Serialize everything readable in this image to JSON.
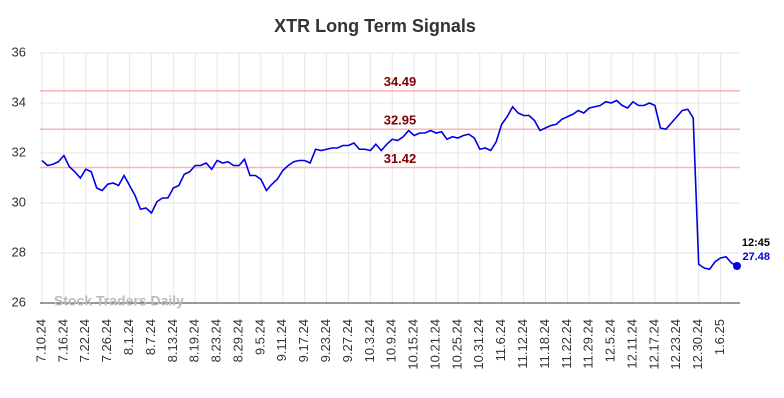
{
  "chart_data": {
    "type": "line",
    "title": "XTR Long Term Signals",
    "watermark": "Stock Traders Daily",
    "categories": [
      "7.10.24",
      null,
      null,
      null,
      "7.16.24",
      null,
      null,
      null,
      "7.22.24",
      null,
      null,
      null,
      "7.26.24",
      null,
      null,
      null,
      "8.1.24",
      null,
      null,
      null,
      "8.7.24",
      null,
      null,
      null,
      "8.13.24",
      null,
      null,
      null,
      "8.19.24",
      null,
      null,
      null,
      "8.23.24",
      null,
      null,
      null,
      "8.29.24",
      null,
      null,
      null,
      "9.5.24",
      null,
      null,
      null,
      "9.11.24",
      null,
      null,
      null,
      "9.17.24",
      null,
      null,
      null,
      "9.23.24",
      null,
      null,
      null,
      "9.27.24",
      null,
      null,
      null,
      "10.3.24",
      null,
      null,
      null,
      "10.9.24",
      null,
      null,
      null,
      "10.15.24",
      null,
      null,
      null,
      "10.21.24",
      null,
      null,
      null,
      "10.25.24",
      null,
      null,
      null,
      "10.31.24",
      null,
      null,
      null,
      "11.6.24",
      null,
      null,
      null,
      "11.12.24",
      null,
      null,
      null,
      "11.18.24",
      null,
      null,
      null,
      "11.22.24",
      null,
      null,
      null,
      "11.29.24",
      null,
      null,
      null,
      "12.5.24",
      null,
      null,
      null,
      "12.11.24",
      null,
      null,
      null,
      "12.17.24",
      null,
      null,
      null,
      "12.23.24",
      null,
      null,
      null,
      "12.30.24",
      null,
      null,
      null,
      "1.6.25",
      null,
      null,
      null
    ],
    "series": [
      {
        "name": "XTR",
        "color": "#0000e6",
        "values": [
          31.7,
          31.5,
          31.55,
          31.65,
          31.9,
          31.45,
          31.25,
          31.0,
          31.35,
          31.25,
          30.6,
          30.5,
          30.75,
          30.8,
          30.7,
          31.1,
          30.7,
          30.3,
          29.75,
          29.8,
          29.6,
          30.05,
          30.2,
          30.2,
          30.6,
          30.7,
          31.15,
          31.25,
          31.5,
          31.5,
          31.6,
          31.35,
          31.7,
          31.6,
          31.65,
          31.5,
          31.5,
          31.75,
          31.1,
          31.1,
          30.95,
          30.5,
          30.75,
          30.95,
          31.3,
          31.5,
          31.65,
          31.7,
          31.7,
          31.6,
          32.15,
          32.1,
          32.15,
          32.2,
          32.2,
          32.3,
          32.3,
          32.4,
          32.15,
          32.15,
          32.1,
          32.35,
          32.1,
          32.35,
          32.55,
          32.5,
          32.65,
          32.9,
          32.7,
          32.8,
          32.8,
          32.9,
          32.8,
          32.85,
          32.55,
          32.65,
          32.6,
          32.7,
          32.75,
          32.6,
          32.15,
          32.2,
          32.1,
          32.45,
          33.15,
          33.45,
          33.85,
          33.6,
          33.5,
          33.5,
          33.3,
          32.9,
          33.0,
          33.1,
          33.15,
          33.35,
          33.45,
          33.55,
          33.7,
          33.6,
          33.8,
          33.85,
          33.9,
          34.05,
          34.0,
          34.1,
          33.9,
          33.8,
          34.05,
          33.9,
          33.9,
          34.0,
          33.9,
          33.0,
          32.95,
          33.2,
          33.45,
          33.7,
          33.75,
          33.4,
          27.55,
          27.4,
          27.35,
          27.65,
          27.8,
          27.85,
          27.6,
          27.48
        ]
      }
    ],
    "reference_lines": [
      34.49,
      32.95,
      31.42
    ],
    "reference_color": "#ffb3b3",
    "reference_label_color": "#800000",
    "last_label": "12:45",
    "ylim": [
      26,
      36
    ],
    "yticks": [
      26,
      28,
      30,
      32,
      34,
      36
    ],
    "grid": true
  }
}
